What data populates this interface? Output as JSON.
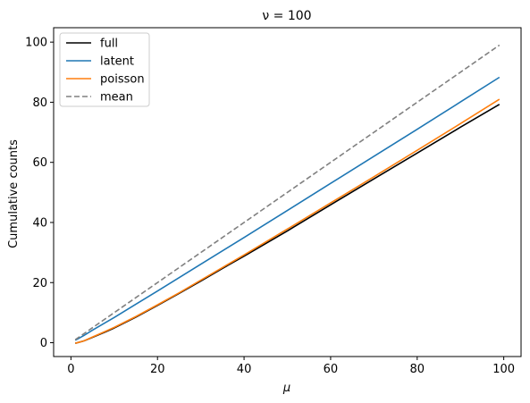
{
  "chart_data": {
    "type": "line",
    "title": "ν = 100",
    "xlabel": "μ",
    "ylabel": "Cumulative counts",
    "xlim": [
      -4,
      104
    ],
    "ylim": [
      -4.6,
      104.8
    ],
    "xticks": [
      0,
      20,
      40,
      60,
      80,
      100
    ],
    "yticks": [
      0,
      20,
      40,
      60,
      80,
      100
    ],
    "grid": false,
    "legend_position": "top-left",
    "series": [
      {
        "name": "full",
        "color": "#000000",
        "dash": "solid",
        "x": [
          1,
          3,
          5,
          8,
          10,
          15,
          20,
          25,
          30,
          35,
          40,
          50,
          60,
          70,
          80,
          90,
          99
        ],
        "y": [
          -0.2,
          0.6,
          1.8,
          3.6,
          4.9,
          8.5,
          12.4,
          16.4,
          20.5,
          24.7,
          28.8,
          37.2,
          45.9,
          54.5,
          63.1,
          71.7,
          79.3
        ]
      },
      {
        "name": "latent",
        "color": "#1f77b4",
        "dash": "solid",
        "x": [
          1,
          3,
          5,
          8,
          10,
          15,
          20,
          30,
          40,
          50,
          60,
          70,
          80,
          90,
          99
        ],
        "y": [
          0.8,
          2.4,
          4.2,
          6.7,
          8.4,
          12.8,
          17.2,
          26.1,
          35.0,
          44.0,
          53.0,
          62.0,
          71.0,
          80.1,
          88.3
        ]
      },
      {
        "name": "poisson",
        "color": "#ff7f0e",
        "dash": "solid",
        "x": [
          1,
          3,
          5,
          8,
          10,
          15,
          20,
          25,
          30,
          35,
          40,
          50,
          60,
          70,
          80,
          90,
          99
        ],
        "y": [
          -0.2,
          0.6,
          1.9,
          3.8,
          5.1,
          8.7,
          12.6,
          16.6,
          20.8,
          25.0,
          29.2,
          37.8,
          46.5,
          55.2,
          64.0,
          72.9,
          81.0
        ]
      },
      {
        "name": "mean",
        "color": "#808080",
        "dash": "dashed",
        "x": [
          1,
          99
        ],
        "y": [
          1,
          99
        ]
      }
    ]
  }
}
